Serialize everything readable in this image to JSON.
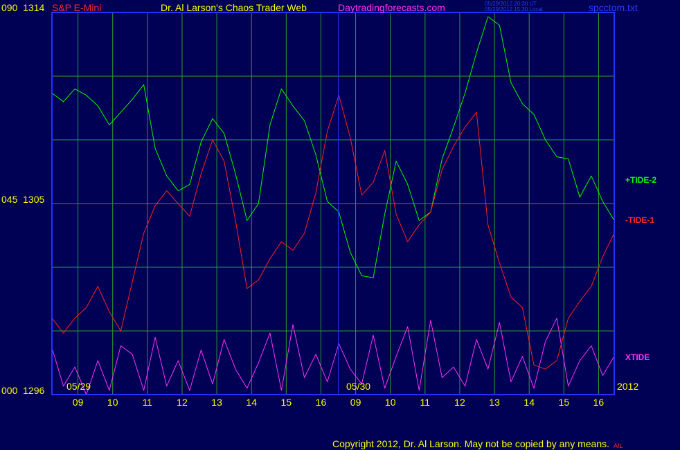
{
  "header": {
    "symbol": "S&P E-Mini",
    "title": "Dr. Al Larson's Chaos Trader Web",
    "site": "Daytradingforecasts.com",
    "stamp_ut": "05/29/2012 20:30 UT",
    "stamp_local": "05/29/2012 15:30 Local",
    "file": "spcctom.txt"
  },
  "footer": {
    "copyright": "Copyright 2012, Dr. Al Larson. May not be copied by any means.",
    "ai": "AIL"
  },
  "colors": {
    "background": "#000055",
    "frame": "#2233ff",
    "grid": "#2e9e2e",
    "tide2": "#00ff00",
    "tide1": "#ff2222",
    "xtide": "#ff33ff",
    "label_yellow": "#ffff00"
  },
  "chart_data": {
    "type": "line",
    "y_left_labels": [
      {
        "osc": "090",
        "price": "1314"
      },
      {
        "osc": "045",
        "price": "1305"
      },
      {
        "osc": "000",
        "price": "1296"
      }
    ],
    "price_range": [
      1296,
      1314
    ],
    "x_hour_labels": [
      "09",
      "10",
      "11",
      "12",
      "13",
      "14",
      "15",
      "16",
      "09",
      "10",
      "11",
      "12",
      "13",
      "14",
      "15",
      "16"
    ],
    "date_labels": [
      "05/29",
      "05/30"
    ],
    "year_label": "2012",
    "grid": true,
    "series": [
      {
        "name": "+TIDE-2",
        "values": [
          1310.2,
          1309.8,
          1310.4,
          1310.1,
          1309.6,
          1308.7,
          1309.3,
          1309.9,
          1310.6,
          1307.6,
          1306.3,
          1305.6,
          1305.9,
          1307.9,
          1309.0,
          1308.3,
          1306.4,
          1304.2,
          1305.0,
          1308.7,
          1310.4,
          1309.6,
          1308.9,
          1307.3,
          1305.1,
          1304.6,
          1302.7,
          1301.6,
          1301.5,
          1304.5,
          1307.0,
          1305.9,
          1304.2,
          1304.6,
          1307.1,
          1308.6,
          1310.2,
          1312.1,
          1313.8,
          1313.4,
          1310.7,
          1309.7,
          1309.2,
          1308.0,
          1307.2,
          1307.1,
          1305.3,
          1306.3,
          1305.1,
          1304.2
        ],
        "start_frac": 0.0,
        "end_frac": 1.0
      },
      {
        "name": "-TIDE-1",
        "values": [
          1299.6,
          1298.9,
          1299.6,
          1300.1,
          1301.1,
          1299.9,
          1299.0,
          1301.3,
          1303.6,
          1304.9,
          1305.6,
          1305.0,
          1304.4,
          1306.4,
          1308.0,
          1307.0,
          1304.2,
          1301.0,
          1301.4,
          1302.4,
          1303.2,
          1302.8,
          1303.6,
          1305.5,
          1308.4,
          1310.1,
          1308.1,
          1305.4,
          1306.0,
          1307.5,
          1304.5,
          1303.2,
          1304.0,
          1304.6,
          1306.6,
          1307.7,
          1308.6,
          1309.3,
          1304.0,
          1302.2,
          1300.6,
          1300.1,
          1297.4,
          1297.2,
          1297.6,
          1299.6,
          1300.4,
          1301.1,
          1302.5,
          1303.6
        ],
        "start_frac": 0.0,
        "end_frac": 1.0
      },
      {
        "name": "XTIDE",
        "values": [
          1298.2,
          1296.4,
          1297.3,
          1296.0,
          1297.6,
          1296.2,
          1298.3,
          1297.9,
          1296.2,
          1298.7,
          1296.4,
          1297.6,
          1296.2,
          1298.1,
          1296.5,
          1298.6,
          1297.2,
          1296.3,
          1297.5,
          1298.9,
          1296.2,
          1299.3,
          1296.8,
          1297.9,
          1296.6,
          1298.4,
          1297.2,
          1296.5,
          1298.8,
          1296.3,
          1297.8,
          1299.2,
          1296.2,
          1299.5,
          1296.8,
          1297.3,
          1296.4,
          1298.6,
          1297.2,
          1299.4,
          1296.6,
          1297.8,
          1296.3,
          1298.5,
          1299.6,
          1296.4,
          1297.6,
          1298.3,
          1296.9,
          1297.8
        ],
        "start_frac": 0.0,
        "end_frac": 1.0
      }
    ]
  }
}
